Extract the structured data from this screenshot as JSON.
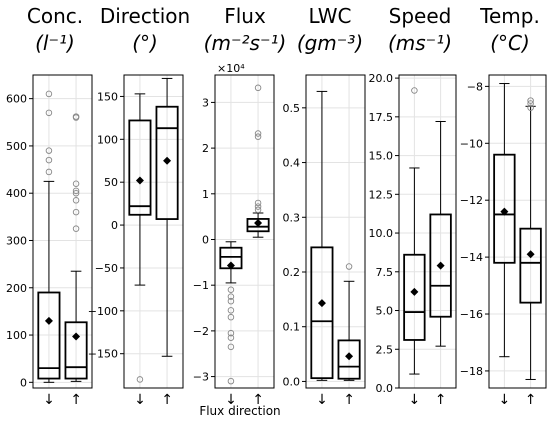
{
  "x_axis_label": "Flux direction",
  "chart_data": [
    {
      "type": "box",
      "title_line1": "Conc.",
      "title_line2": "(l⁻¹)",
      "categories": [
        "↓",
        "↑"
      ],
      "ylim": [
        -12,
        650
      ],
      "yticks": [
        0,
        100,
        200,
        300,
        400,
        500,
        600
      ],
      "ytick_labels": [
        "0",
        "100",
        "200",
        "300",
        "400",
        "500",
        "600"
      ],
      "boxes": [
        {
          "whisker_low": 0,
          "q1": 8,
          "median": 30,
          "q3": 190,
          "whisker_high": 425,
          "mean": 130,
          "outliers": [
            445,
            470,
            490,
            570,
            610
          ]
        },
        {
          "whisker_low": 2,
          "q1": 8,
          "median": 32,
          "q3": 127,
          "whisker_high": 235,
          "mean": 97,
          "outliers": [
            325,
            360,
            385,
            400,
            405,
            420,
            560,
            562
          ]
        }
      ]
    },
    {
      "type": "box",
      "title_line1": "Direction",
      "title_line2": "(°)",
      "categories": [
        "↓",
        "↑"
      ],
      "ylim": [
        -190,
        175
      ],
      "yticks": [
        -150,
        -100,
        -50,
        0,
        50,
        100,
        150
      ],
      "ytick_labels": [
        "−150",
        "−100",
        "−50",
        "0",
        "50",
        "100",
        "150"
      ],
      "boxes": [
        {
          "whisker_low": -70,
          "q1": 12,
          "median": 22,
          "q3": 122,
          "whisker_high": 153,
          "mean": 52,
          "outliers": [
            -180
          ]
        },
        {
          "whisker_low": -153,
          "q1": 7,
          "median": 113,
          "q3": 138,
          "whisker_high": 171,
          "mean": 75,
          "outliers": []
        }
      ]
    },
    {
      "type": "box",
      "title_line1": "Flux",
      "title_line2": "(m⁻²s⁻¹)",
      "categories": [
        "↓",
        "↑"
      ],
      "ylim": [
        -3.25,
        3.6
      ],
      "yticks": [
        -3,
        -2,
        -1,
        0,
        1,
        2,
        3
      ],
      "ytick_labels": [
        "−3",
        "−2",
        "−1",
        "0",
        "1",
        "2",
        "3"
      ],
      "multiplier": "×10⁴",
      "boxes": [
        {
          "whisker_low": -0.95,
          "q1": -0.63,
          "median": -0.38,
          "q3": -0.18,
          "whisker_high": -0.05,
          "mean": -0.57,
          "outliers": [
            -1.1,
            -1.25,
            -1.35,
            -1.55,
            -1.7,
            -2.05,
            -2.15,
            -2.35,
            -3.1
          ]
        },
        {
          "whisker_low": 0.05,
          "q1": 0.18,
          "median": 0.28,
          "q3": 0.45,
          "whisker_high": 0.58,
          "mean": 0.36,
          "outliers": [
            0.65,
            0.72,
            0.8,
            2.25,
            2.32,
            3.32
          ]
        }
      ]
    },
    {
      "type": "box",
      "title_line1": "LWC",
      "title_line2": "(gm⁻³)",
      "categories": [
        "↓",
        "↑"
      ],
      "ylim": [
        -0.012,
        0.56
      ],
      "yticks": [
        0.0,
        0.1,
        0.2,
        0.3,
        0.4,
        0.5
      ],
      "ytick_labels": [
        "0.0",
        "0.1",
        "0.2",
        "0.3",
        "0.4",
        "0.5"
      ],
      "boxes": [
        {
          "whisker_low": 0.002,
          "q1": 0.006,
          "median": 0.11,
          "q3": 0.245,
          "whisker_high": 0.53,
          "mean": 0.143,
          "outliers": []
        },
        {
          "whisker_low": 0.002,
          "q1": 0.005,
          "median": 0.027,
          "q3": 0.075,
          "whisker_high": 0.183,
          "mean": 0.046,
          "outliers": [
            0.21
          ]
        }
      ]
    },
    {
      "type": "box",
      "title_line1": "Speed",
      "title_line2": "(ms⁻¹)",
      "categories": [
        "↓",
        "↑"
      ],
      "ylim": [
        0,
        20.2
      ],
      "yticks": [
        0.0,
        2.5,
        5.0,
        7.5,
        10.0,
        12.5,
        15.0,
        17.5,
        20.0
      ],
      "ytick_labels": [
        "0.0",
        "2.5",
        "5.0",
        "7.5",
        "10.0",
        "12.5",
        "15.0",
        "17.5",
        "20.0"
      ],
      "boxes": [
        {
          "whisker_low": 0.9,
          "q1": 3.1,
          "median": 4.9,
          "q3": 8.6,
          "whisker_high": 14.2,
          "mean": 6.2,
          "outliers": [
            19.2
          ]
        },
        {
          "whisker_low": 2.7,
          "q1": 4.6,
          "median": 6.6,
          "q3": 11.2,
          "whisker_high": 17.2,
          "mean": 7.9,
          "outliers": []
        }
      ]
    },
    {
      "type": "box",
      "title_line1": "Temp.",
      "title_line2": "(°C)",
      "categories": [
        "↓",
        "↑"
      ],
      "ylim": [
        -18.6,
        -7.6
      ],
      "yticks": [
        -18,
        -16,
        -14,
        -12,
        -10,
        -8
      ],
      "ytick_labels": [
        "−18",
        "−16",
        "−14",
        "−12",
        "−10",
        "−8"
      ],
      "boxes": [
        {
          "whisker_low": -17.5,
          "q1": -14.2,
          "median": -12.5,
          "q3": -10.4,
          "whisker_high": -7.9,
          "mean": -12.4,
          "outliers": []
        },
        {
          "whisker_low": -18.3,
          "q1": -15.6,
          "median": -14.2,
          "q3": -13.0,
          "whisker_high": -8.7,
          "mean": -13.9,
          "outliers": [
            -8.5,
            -8.6,
            -8.75
          ]
        }
      ]
    }
  ]
}
